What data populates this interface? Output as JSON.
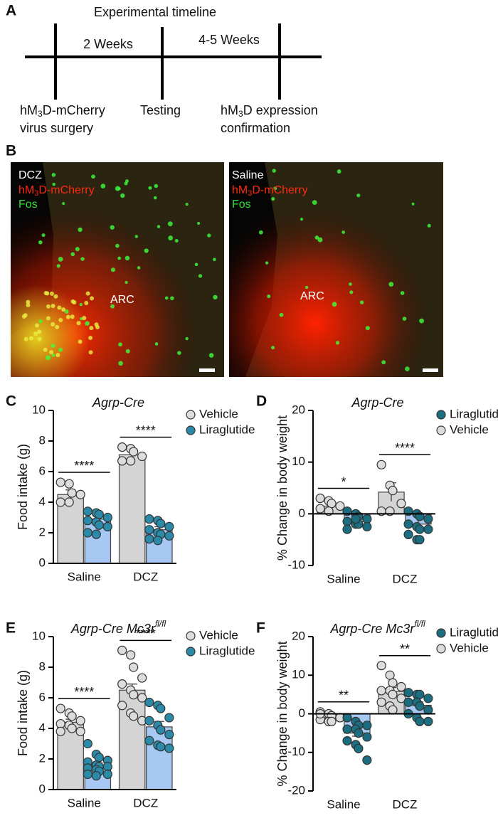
{
  "panel_labels": [
    "A",
    "B",
    "C",
    "D",
    "E",
    "F"
  ],
  "timeline": {
    "title": "Experimental timeline",
    "intervals": [
      "2 Weeks",
      "4-5 Weeks"
    ],
    "events": [
      {
        "pre": "hM",
        "sub": "3",
        "post": "D-mCherry",
        "line2": "virus surgery"
      },
      {
        "text": "Testing"
      },
      {
        "pre": "hM",
        "sub": "3",
        "post": "D expression",
        "line2": "confirmation"
      }
    ]
  },
  "images": [
    {
      "treatment": "DCZ",
      "pre": "hM",
      "sub": "3",
      "post": "D-mCherry",
      "marker": "Fos",
      "region": "ARC"
    },
    {
      "treatment": "Saline",
      "pre": "hM",
      "sub": "3",
      "post": "D-mCherry",
      "marker": "Fos",
      "region": "ARC"
    }
  ],
  "chart_data": [
    {
      "type": "bar",
      "title": "Agrp-Cre",
      "ylabel": "Food intake (g)",
      "categories": [
        "Saline",
        "DCZ"
      ],
      "ylim": [
        0,
        10
      ],
      "yticks": [
        0,
        2,
        4,
        6,
        8,
        10
      ],
      "legend_order": [
        0,
        1
      ],
      "series": [
        {
          "name": "Vehicle",
          "color": "#d4d4d4",
          "point_color": "#dcdcdc",
          "values": [
            4.5,
            7.1
          ],
          "errors": [
            0.3,
            0.2
          ],
          "points": [
            [
              5.3,
              5.2,
              4.6,
              4.5,
              4.0,
              4.0
            ],
            [
              7.6,
              7.5,
              7.3,
              7.0,
              6.7,
              6.7
            ]
          ]
        },
        {
          "name": "Liraglutide",
          "color": "#a6c8f2",
          "point_color": "#2a8aa8",
          "values": [
            2.9,
            2.2
          ],
          "errors": [
            0.2,
            0.2
          ],
          "points": [
            [
              3.4,
              3.3,
              3.2,
              3.0,
              2.8,
              2.7,
              2.5,
              2.4,
              2.0,
              1.9
            ],
            [
              2.9,
              2.8,
              2.6,
              2.4,
              2.2,
              2.0,
              1.9,
              1.8,
              1.6,
              1.5
            ]
          ]
        }
      ],
      "annotations": [
        {
          "label": "****",
          "category": 0
        },
        {
          "label": "****",
          "category": 1
        }
      ]
    },
    {
      "type": "bar",
      "title": "Agrp-Cre",
      "ylabel": "% Change in body weight",
      "categories": [
        "Saline",
        "DCZ"
      ],
      "ylim": [
        -10,
        20
      ],
      "yticks": [
        -10,
        0,
        10,
        20
      ],
      "legend_order": [
        1,
        0
      ],
      "series": [
        {
          "name": "Vehicle",
          "color": "#d4d4d4",
          "point_color": "#dcdcdc",
          "values": [
            1.5,
            4.2
          ],
          "errors": [
            0.6,
            1.8
          ],
          "points": [
            [
              3.0,
              2.5,
              2.0,
              1.5,
              1.0,
              0.5
            ],
            [
              9.5,
              5.5,
              4.5,
              2.0,
              0.5,
              0.5
            ]
          ]
        },
        {
          "name": "Liraglutide",
          "color": "#a6c8f2",
          "point_color": "#1a6e80",
          "values": [
            -1.5,
            -2.0
          ],
          "errors": [
            0.5,
            0.8
          ],
          "points": [
            [
              0.5,
              0,
              -0.5,
              -1,
              -1.5,
              -2,
              -2,
              -2.5,
              -3,
              -1
            ],
            [
              0.5,
              0,
              -0.5,
              -1,
              -2,
              -2.5,
              -3,
              -3,
              -4,
              -5,
              -5
            ]
          ]
        }
      ],
      "annotations": [
        {
          "label": "*",
          "category": 0
        },
        {
          "label": "****",
          "category": 1
        }
      ]
    },
    {
      "type": "bar",
      "title": "Agrp-Cre Mc3r",
      "title_sup": "fl/fl",
      "ylabel": "Food intake (g)",
      "categories": [
        "Saline",
        "DCZ"
      ],
      "ylim": [
        0,
        10
      ],
      "yticks": [
        0,
        2,
        4,
        6,
        8,
        10
      ],
      "legend_order": [
        0,
        1
      ],
      "series": [
        {
          "name": "Vehicle",
          "color": "#d4d4d4",
          "point_color": "#dcdcdc",
          "values": [
            4.4,
            6.5
          ],
          "errors": [
            0.2,
            0.4
          ],
          "points": [
            [
              5.3,
              5.0,
              4.8,
              4.5,
              4.3,
              4.2,
              4.0,
              3.8,
              3.8
            ],
            [
              9.1,
              8.8,
              8.0,
              7.3,
              6.9,
              6.5,
              6.2,
              6.0,
              5.5,
              5.0,
              4.8,
              4.5
            ]
          ]
        },
        {
          "name": "Liraglutide",
          "color": "#a6c8f2",
          "point_color": "#2a8aa8",
          "values": [
            1.6,
            4.1
          ],
          "errors": [
            0.15,
            0.35
          ],
          "points": [
            [
              3.0,
              2.3,
              2.1,
              1.9,
              1.8,
              1.6,
              1.5,
              1.5,
              1.4,
              1.3,
              1.2,
              1.0,
              1.0,
              0.9
            ],
            [
              5.7,
              5.5,
              5.3,
              4.7,
              4.5,
              4.2,
              3.9,
              3.6,
              3.2,
              2.9,
              2.8,
              2.7
            ]
          ]
        }
      ],
      "annotations": [
        {
          "label": "****",
          "category": 0
        },
        {
          "label": "****",
          "category": 1
        }
      ]
    },
    {
      "type": "bar",
      "title": "Agrp-Cre Mc3r",
      "title_sup": "fl/fl",
      "ylabel": "% Change in body weight",
      "categories": [
        "Saline",
        "DCZ"
      ],
      "ylim": [
        -20,
        20
      ],
      "yticks": [
        -20,
        -10,
        0,
        10,
        20
      ],
      "legend_order": [
        1,
        0
      ],
      "series": [
        {
          "name": "Vehicle",
          "color": "#d4d4d4",
          "point_color": "#dcdcdc",
          "values": [
            -1.0,
            5.8
          ],
          "errors": [
            0.5,
            1.0
          ],
          "points": [
            [
              0.5,
              0,
              -0.5,
              -1,
              -1.5,
              -2,
              -2,
              -1,
              0
            ],
            [
              12.5,
              10,
              8,
              7,
              6,
              6,
              5,
              4,
              3,
              2,
              1
            ]
          ]
        },
        {
          "name": "Liraglutide",
          "color": "#a6c8f2",
          "point_color": "#1a6e80",
          "values": [
            -5.0,
            2.2
          ],
          "errors": [
            0.8,
            0.9
          ],
          "points": [
            [
              -1,
              -2,
              -3,
              -3,
              -4,
              -4,
              -5,
              -6,
              -7,
              -8,
              -9,
              -12
            ],
            [
              5.5,
              5,
              5,
              4,
              3,
              3,
              2,
              1,
              0,
              -1,
              -2,
              -2
            ]
          ]
        }
      ],
      "annotations": [
        {
          "label": "**",
          "category": 0
        },
        {
          "label": "**",
          "category": 1
        }
      ]
    }
  ]
}
